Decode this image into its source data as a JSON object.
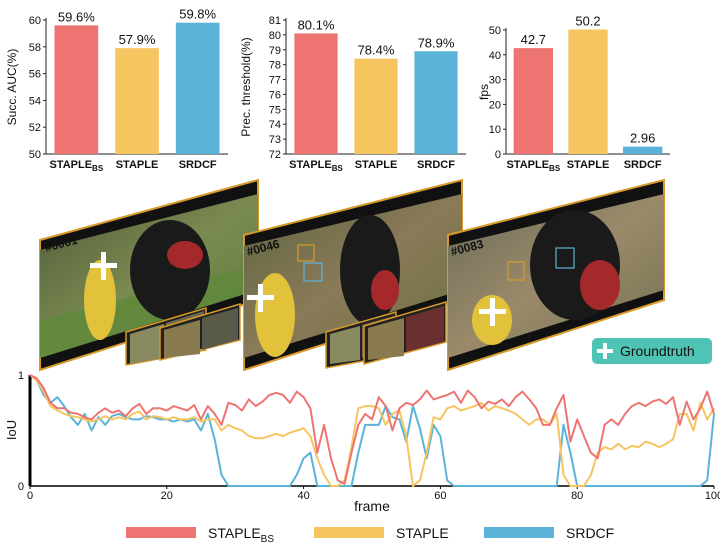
{
  "colors": {
    "staple_bs": "#ee7472",
    "staple": "#f6c560",
    "srdcf": "#5cb3da",
    "badge": "#4fc4b4",
    "frame_border": "#d89a2a"
  },
  "bar_charts": [
    {
      "type": "bar",
      "ylabel": "Succ. AUC(%)",
      "ylim": [
        50,
        60
      ],
      "yticks": [
        "50",
        "52",
        "54",
        "56",
        "58",
        "60"
      ],
      "categories": [
        "STAPLE",
        "STAPLE",
        "SRDCF"
      ],
      "sub": [
        "BS",
        "",
        ""
      ],
      "values": [
        59.6,
        57.9,
        59.8
      ],
      "value_labels": [
        "59.6%",
        "57.9%",
        "59.8%"
      ]
    },
    {
      "type": "bar",
      "ylabel": "Prec. threshold(%)",
      "ylim": [
        72,
        81
      ],
      "yticks": [
        "72",
        "73",
        "74",
        "75",
        "76",
        "77",
        "78",
        "79",
        "80",
        "81"
      ],
      "categories": [
        "STAPLE",
        "STAPLE",
        "SRDCF"
      ],
      "sub": [
        "BS",
        "",
        ""
      ],
      "values": [
        80.1,
        78.4,
        78.9
      ],
      "value_labels": [
        "80.1%",
        "78.4%",
        "78.9%"
      ]
    },
    {
      "type": "bar",
      "ylabel": "fps",
      "ylim": [
        0,
        50
      ],
      "yticks": [
        "0",
        "10",
        "20",
        "30",
        "40",
        "50"
      ],
      "categories": [
        "STAPLE",
        "STAPLE",
        "SRDCF"
      ],
      "sub": [
        "BS",
        "",
        ""
      ],
      "values": [
        42.7,
        50.2,
        2.96
      ],
      "value_labels": [
        "42.7",
        "50.2",
        "2.96"
      ]
    }
  ],
  "frames": [
    "#0001",
    "#0046",
    "#0083"
  ],
  "badge_label": "Groundtruth",
  "chart_data": {
    "type": "line",
    "xlabel": "frame",
    "ylabel": "IoU",
    "xlim": [
      0,
      100
    ],
    "ylim": [
      0,
      1
    ],
    "xticks": [
      "0",
      "20",
      "40",
      "60",
      "80",
      "100"
    ],
    "yticks": [
      "0",
      "1"
    ],
    "x": [
      0,
      1,
      2,
      3,
      4,
      5,
      6,
      7,
      8,
      9,
      10,
      11,
      12,
      13,
      14,
      15,
      16,
      17,
      18,
      19,
      20,
      21,
      22,
      23,
      24,
      25,
      26,
      27,
      28,
      29,
      30,
      31,
      32,
      33,
      34,
      35,
      36,
      37,
      38,
      39,
      40,
      41,
      42,
      43,
      44,
      45,
      46,
      47,
      48,
      49,
      50,
      51,
      52,
      53,
      54,
      55,
      56,
      57,
      58,
      59,
      60,
      61,
      62,
      63,
      64,
      65,
      66,
      67,
      68,
      69,
      70,
      71,
      72,
      73,
      74,
      75,
      76,
      77,
      78,
      79,
      80,
      81,
      82,
      83,
      84,
      85,
      86,
      87,
      88,
      89,
      90,
      91,
      92,
      93,
      94,
      95,
      96,
      97,
      98,
      99,
      100
    ],
    "series": [
      {
        "name": "STAPLE",
        "sub": "BS",
        "color": "#ee7472",
        "values": [
          1,
          0.97,
          0.88,
          0.75,
          0.7,
          0.7,
          0.66,
          0.65,
          0.62,
          0.6,
          0.66,
          0.7,
          0.66,
          0.68,
          0.63,
          0.7,
          0.74,
          0.65,
          0.7,
          0.7,
          0.68,
          0.72,
          0.7,
          0.68,
          0.73,
          0.6,
          0.72,
          0.65,
          0.55,
          0.75,
          0.73,
          0.68,
          0.78,
          0.72,
          0.76,
          0.82,
          0.84,
          0.82,
          0.75,
          0.85,
          0.8,
          0.7,
          0.3,
          0.55,
          0.25,
          0.05,
          0.02,
          0.3,
          0.55,
          0.65,
          0.6,
          0.8,
          0.72,
          0.5,
          0.7,
          0.75,
          0.73,
          0.78,
          0.86,
          0.78,
          0.8,
          0.82,
          0.85,
          0.75,
          0.86,
          0.8,
          0.7,
          0.76,
          0.74,
          0.78,
          0.72,
          0.8,
          0.85,
          0.78,
          0.7,
          0.55,
          0.55,
          0.7,
          0.82,
          0.4,
          0.6,
          0.45,
          0.3,
          0.25,
          0.55,
          0.6,
          0.55,
          0.65,
          0.72,
          0.75,
          0.72,
          0.76,
          0.78,
          0.74,
          0.8,
          0.55,
          0.76,
          0.6,
          0.7,
          0.85,
          0.65
        ]
      },
      {
        "name": "STAPLE",
        "sub": "",
        "color": "#f6c560",
        "values": [
          1,
          0.95,
          0.85,
          0.72,
          0.68,
          0.65,
          0.63,
          0.62,
          0.6,
          0.58,
          0.6,
          0.63,
          0.6,
          0.62,
          0.6,
          0.65,
          0.67,
          0.6,
          0.63,
          0.62,
          0.6,
          0.62,
          0.6,
          0.6,
          0.62,
          0.58,
          0.6,
          0.6,
          0.5,
          0.55,
          0.52,
          0.5,
          0.45,
          0.43,
          0.43,
          0.45,
          0.47,
          0.45,
          0.48,
          0.5,
          0.52,
          0.45,
          0.25,
          0.1,
          0.0,
          0.0,
          0.05,
          0.35,
          0.7,
          0.72,
          0.72,
          0.7,
          0.55,
          0.65,
          0.68,
          0.45,
          0.0,
          0.05,
          0.3,
          0.62,
          0.6,
          0.7,
          0.72,
          0.68,
          0.7,
          0.72,
          0.75,
          0.68,
          0.72,
          0.7,
          0.68,
          0.65,
          0.6,
          0.55,
          0.6,
          0.6,
          0.55,
          0.65,
          0.1,
          0.0,
          0.0,
          0.0,
          0.1,
          0.3,
          0.35,
          0.33,
          0.38,
          0.33,
          0.36,
          0.35,
          0.4,
          0.38,
          0.35,
          0.38,
          0.42,
          0.65,
          0.65,
          0.5,
          0.75,
          0.6,
          0.7
        ]
      },
      {
        "name": "SRDCF",
        "sub": "",
        "color": "#5cb3da",
        "values": [
          1,
          0.95,
          0.82,
          0.75,
          0.8,
          0.72,
          0.62,
          0.55,
          0.65,
          0.5,
          0.62,
          0.55,
          0.63,
          0.65,
          0.62,
          0.6,
          0.6,
          0.63,
          0.62,
          0.6,
          0.6,
          0.58,
          0.6,
          0.58,
          0.6,
          0.5,
          0.65,
          0.42,
          0.1,
          0.0,
          0.0,
          0.0,
          0.0,
          0.0,
          0.0,
          0.0,
          0.0,
          0.0,
          0.0,
          0.1,
          0.25,
          0.3,
          0.0,
          0.0,
          0.0,
          0.0,
          0.0,
          0.0,
          0.3,
          0.55,
          0.55,
          0.55,
          0.72,
          0.62,
          0.6,
          0.4,
          0.72,
          0.52,
          0.25,
          0.55,
          0.45,
          0.05,
          0.0,
          0.0,
          0.0,
          0.0,
          0.0,
          0.0,
          0.0,
          0.0,
          0.0,
          0.0,
          0.0,
          0.0,
          0.0,
          0.0,
          0.0,
          0.0,
          0.55,
          0.3,
          0.0,
          0.0,
          0.0,
          0.0,
          0.0,
          0.0,
          0.0,
          0.0,
          0.0,
          0.0,
          0.0,
          0.0,
          0.0,
          0.0,
          0.0,
          0.0,
          0.0,
          0.0,
          0.0,
          0.05,
          0.65
        ]
      }
    ]
  }
}
